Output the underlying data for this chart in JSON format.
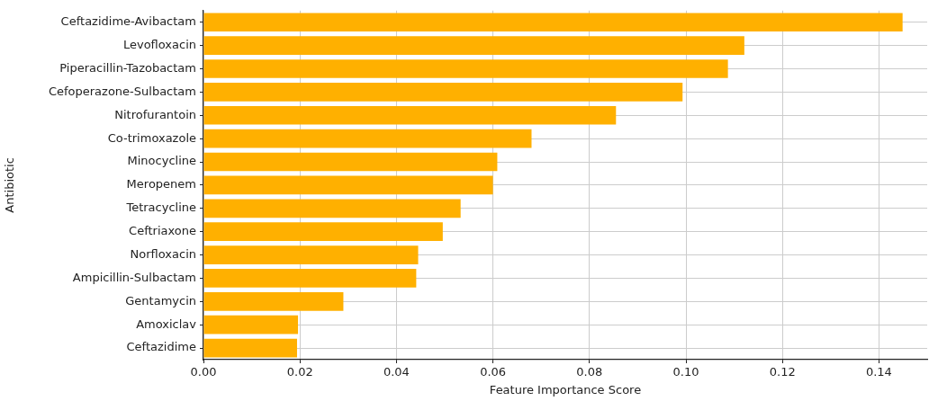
{
  "chart_data": {
    "type": "bar",
    "orientation": "horizontal",
    "xlabel": "Feature Importance Score",
    "ylabel": "Antibiotic",
    "categories": [
      "Ceftazidime-Avibactam",
      "Levofloxacin",
      "Piperacillin-Tazobactam",
      "Cefoperazone-Sulbactam",
      "Nitrofurantoin",
      "Co-trimoxazole",
      "Minocycline",
      "Meropenem",
      "Tetracycline",
      "Ceftriaxone",
      "Norfloxacin",
      "Ampicillin-Sulbactam",
      "Gentamycin",
      "Amoxiclav",
      "Ceftazidime"
    ],
    "values": [
      0.1449,
      0.1121,
      0.1087,
      0.0993,
      0.0855,
      0.068,
      0.0609,
      0.06,
      0.0533,
      0.0496,
      0.0445,
      0.0441,
      0.029,
      0.0196,
      0.0194
    ],
    "color": "#ffb000",
    "xlim": [
      0,
      0.15
    ],
    "xticks": [
      {
        "value": 0,
        "label": "0.00"
      },
      {
        "value": 0.02,
        "label": "0.02"
      },
      {
        "value": 0.04,
        "label": "0.04"
      },
      {
        "value": 0.06,
        "label": "0.06"
      },
      {
        "value": 0.08,
        "label": "0.08"
      },
      {
        "value": 0.1,
        "label": "0.10"
      },
      {
        "value": 0.12,
        "label": "0.12"
      },
      {
        "value": 0.14,
        "label": "0.14"
      }
    ],
    "grid": true
  }
}
